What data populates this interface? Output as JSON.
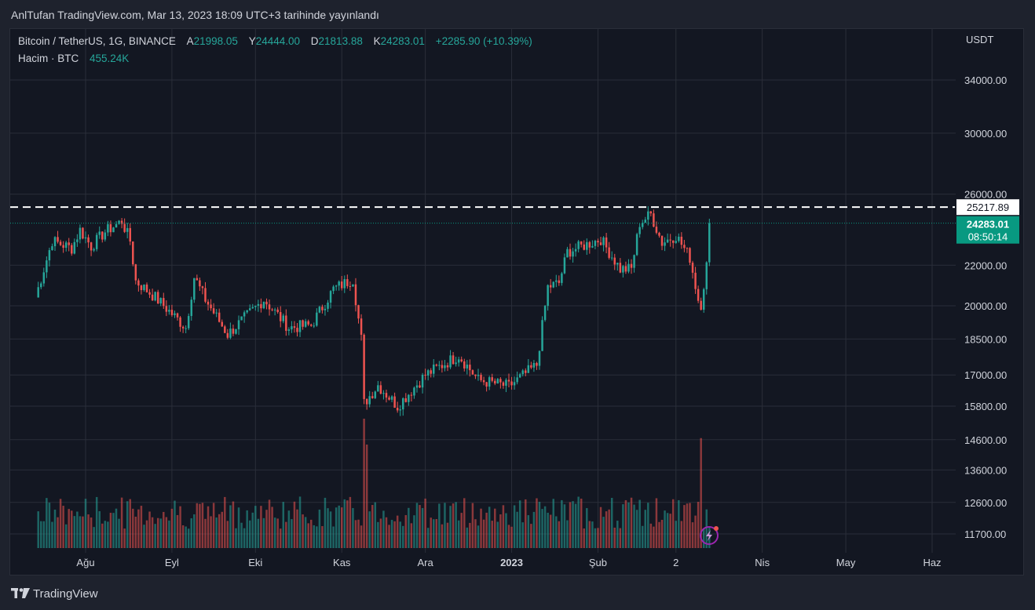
{
  "header": {
    "published": "AnlTufan TradingView.com, Mar 13, 2023 18:09 UTC+3 tarihinde yayınlandı"
  },
  "legend": {
    "symbol": "Bitcoin / TetherUS, 1G, BINANCE",
    "open_label": "A",
    "open": "21998.05",
    "high_label": "Y",
    "high": "24444.00",
    "low_label": "D",
    "low": "21813.88",
    "close_label": "K",
    "close": "24283.01",
    "change": "+2285.90 (+10.39%)",
    "volume_label": "Hacim · BTC",
    "volume": "455.24K"
  },
  "footer": {
    "brand": "TradingView"
  },
  "colors": {
    "up": "#26a69a",
    "down": "#ef5350",
    "background": "#131722",
    "grid": "#2a2e39",
    "text": "#d1d4dc",
    "price_label_bg": "#089981",
    "resistance_line": "#ffffff"
  },
  "icons": {
    "lightning": "lightning-icon",
    "logo": "tradingview-logo-icon"
  },
  "chart_data": {
    "type": "candlestick",
    "title": "Bitcoin / TetherUS, 1G, BINANCE",
    "currency": "USDT",
    "scale": "log",
    "grid": true,
    "y_ticks": [
      34000,
      30000,
      26000,
      22000,
      20000,
      18500,
      17000,
      15800,
      14600,
      13600,
      12600,
      11700
    ],
    "y_tick_labels": [
      "34000.00",
      "30000.00",
      "26000.00",
      "22000.00",
      "20000.00",
      "18500.00",
      "17000.00",
      "15800.00",
      "14600.00",
      "13600.00",
      "12600.00",
      "11700.00"
    ],
    "x_ticks": [
      {
        "label": "Ağu",
        "date": "2022-08-01"
      },
      {
        "label": "Eyl",
        "date": "2022-09-01"
      },
      {
        "label": "Eki",
        "date": "2022-10-01"
      },
      {
        "label": "Kas",
        "date": "2022-11-01"
      },
      {
        "label": "Ara",
        "date": "2022-12-01"
      },
      {
        "label": "2023",
        "date": "2023-01-01"
      },
      {
        "label": "Şub",
        "date": "2023-02-01"
      },
      {
        "label": "2",
        "date": "2023-03-01"
      },
      {
        "label": "Nis",
        "date": "2023-04-01"
      },
      {
        "label": "May",
        "date": "2023-05-01"
      },
      {
        "label": "Haz",
        "date": "2023-06-01"
      }
    ],
    "resistance_level": 25217.89,
    "resistance_label": "25217.89",
    "last_price_label": "24283.01",
    "countdown_label": "08:50:14",
    "price_path": [
      {
        "date": "2022-07-14",
        "close": 20400
      },
      {
        "date": "2022-07-20",
        "close": 23300
      },
      {
        "date": "2022-07-27",
        "close": 22900
      },
      {
        "date": "2022-07-30",
        "close": 23900
      },
      {
        "date": "2022-08-03",
        "close": 23000
      },
      {
        "date": "2022-08-08",
        "close": 23800
      },
      {
        "date": "2022-08-14",
        "close": 24400
      },
      {
        "date": "2022-08-17",
        "close": 23300
      },
      {
        "date": "2022-08-19",
        "close": 21200
      },
      {
        "date": "2022-08-26",
        "close": 20400
      },
      {
        "date": "2022-09-06",
        "close": 19000
      },
      {
        "date": "2022-09-09",
        "close": 21400
      },
      {
        "date": "2022-09-13",
        "close": 20300
      },
      {
        "date": "2022-09-21",
        "close": 18700
      },
      {
        "date": "2022-10-04",
        "close": 20300
      },
      {
        "date": "2022-10-13",
        "close": 19000
      },
      {
        "date": "2022-10-21",
        "close": 19100
      },
      {
        "date": "2022-10-29",
        "close": 20800
      },
      {
        "date": "2022-11-05",
        "close": 21300
      },
      {
        "date": "2022-11-08",
        "close": 18500
      },
      {
        "date": "2022-11-09",
        "close": 15900
      },
      {
        "date": "2022-11-14",
        "close": 16600
      },
      {
        "date": "2022-11-21",
        "close": 15800
      },
      {
        "date": "2022-12-01",
        "close": 17000
      },
      {
        "date": "2022-12-13",
        "close": 17800
      },
      {
        "date": "2022-12-20",
        "close": 16800
      },
      {
        "date": "2022-12-31",
        "close": 16550
      },
      {
        "date": "2023-01-10",
        "close": 17400
      },
      {
        "date": "2023-01-14",
        "close": 20900
      },
      {
        "date": "2023-01-18",
        "close": 21100
      },
      {
        "date": "2023-01-21",
        "close": 22700
      },
      {
        "date": "2023-02-02",
        "close": 23400
      },
      {
        "date": "2023-02-09",
        "close": 21800
      },
      {
        "date": "2023-02-13",
        "close": 21800
      },
      {
        "date": "2023-02-16",
        "close": 24300
      },
      {
        "date": "2023-02-20",
        "close": 24800
      },
      {
        "date": "2023-02-24",
        "close": 23200
      },
      {
        "date": "2023-03-01",
        "close": 23600
      },
      {
        "date": "2023-03-06",
        "close": 22400
      },
      {
        "date": "2023-03-09",
        "close": 20300
      },
      {
        "date": "2023-03-10",
        "close": 20100
      },
      {
        "date": "2023-03-12",
        "close": 22000
      },
      {
        "date": "2023-03-13",
        "close": 24283
      }
    ],
    "volume_highlights": [
      {
        "date": "2022-11-09",
        "volume_relative": 1.0
      },
      {
        "date": "2022-11-10",
        "volume_relative": 0.8
      },
      {
        "date": "2023-03-10",
        "volume_relative": 0.85
      }
    ]
  }
}
